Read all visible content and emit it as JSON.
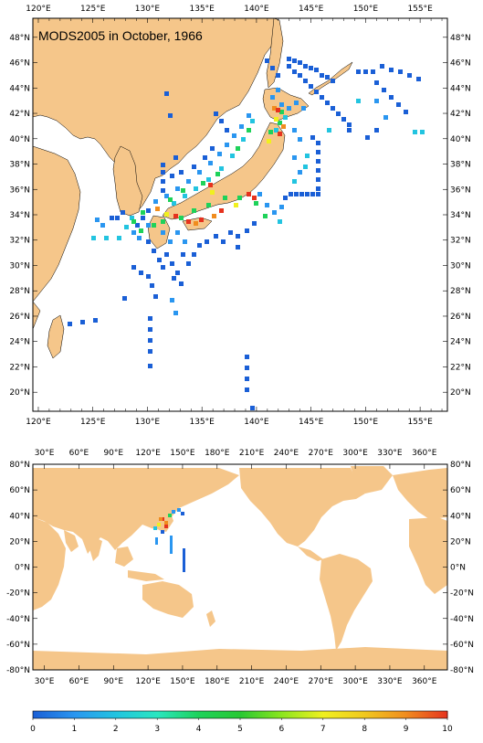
{
  "top_map": {
    "title": "MODS2005 in October, 1966",
    "lon_ticks": [
      "120°E",
      "125°E",
      "130°E",
      "135°E",
      "140°E",
      "145°E",
      "150°E",
      "155°E"
    ],
    "lat_ticks": [
      "48°N",
      "46°N",
      "44°N",
      "42°N",
      "40°N",
      "38°N",
      "36°N",
      "34°N",
      "32°N",
      "30°N",
      "28°N",
      "26°N",
      "24°N",
      "22°N",
      "20°N"
    ],
    "lon_range": [
      119.5,
      157.5
    ],
    "lat_range": [
      18.5,
      49.5
    ]
  },
  "bottom_map": {
    "lon_ticks": [
      "30°E",
      "60°E",
      "90°E",
      "120°E",
      "150°E",
      "180°E",
      "210°E",
      "240°E",
      "270°E",
      "300°E",
      "330°E",
      "360°E"
    ],
    "lat_ticks": [
      "80°N",
      "60°N",
      "40°N",
      "20°N",
      "0°N",
      "-20°N",
      "-40°N",
      "-60°N",
      "-80°N"
    ],
    "lon_range": [
      20,
      380
    ],
    "lat_range": [
      -80,
      80
    ]
  },
  "colorbar": {
    "labels": [
      "0",
      "1",
      "2",
      "3",
      "4",
      "5",
      "6",
      "7",
      "8",
      "9",
      "10"
    ],
    "colors": [
      "#1a5fd6",
      "#2a96f0",
      "#22c4e0",
      "#2ae6c0",
      "#1ed25a",
      "#28c832",
      "#8ce61e",
      "#f0f01e",
      "#f0c81e",
      "#f08c1e",
      "#e6321e"
    ]
  },
  "colors": {
    "land": "#f5c68a",
    "ocean": "#ffffff"
  }
}
